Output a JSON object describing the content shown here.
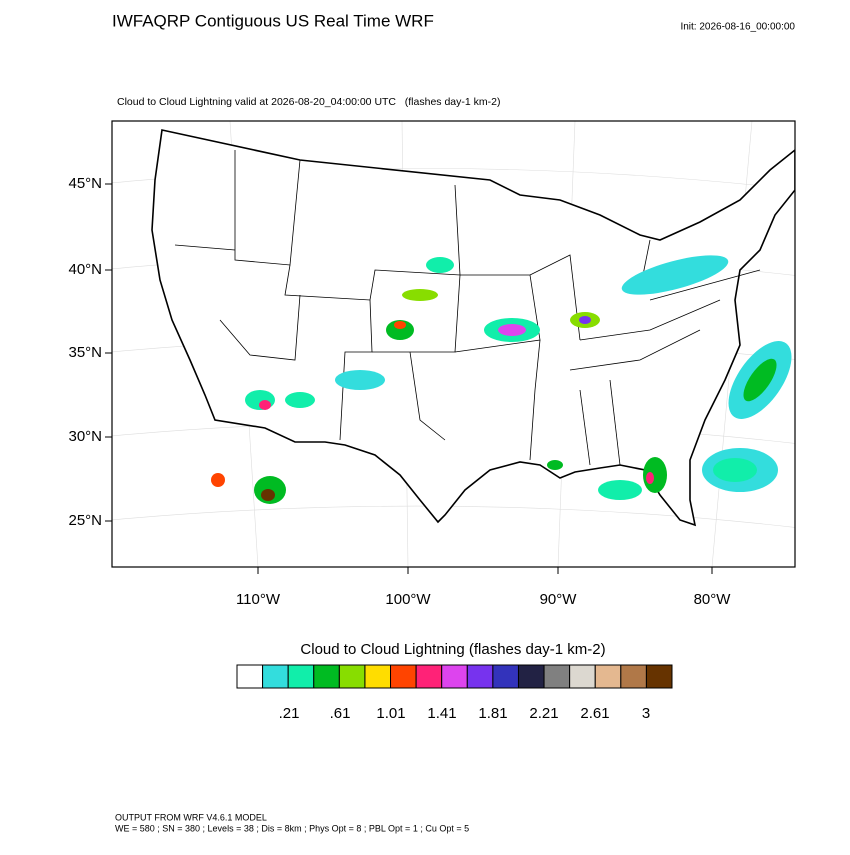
{
  "header": {
    "title": "IWFAQRP Contiguous US Real Time WRF",
    "init": "Init: 2026-08-16_00:00:00"
  },
  "map": {
    "subtitle": "Cloud to Cloud Lightning valid at 2026-08-20_04:00:00 UTC   (flashes day-1 km-2)",
    "lat_labels": [
      "45°N",
      "40°N",
      "35°N",
      "30°N",
      "25°N"
    ],
    "lon_labels": [
      "110°W",
      "100°W",
      "90°W",
      "80°W"
    ]
  },
  "colorbar": {
    "title": "Cloud to Cloud Lightning  (flashes day-1 km-2)",
    "colors": [
      "#ffffff",
      "#33dddd",
      "#11eeaa",
      "#00bb22",
      "#88dd00",
      "#ffdd00",
      "#ff4400",
      "#ff2277",
      "#dd44ee",
      "#7733ee",
      "#3333bb",
      "#222244",
      "#808080",
      "#dcd8d0",
      "#e4b890",
      "#b07848",
      "#663300"
    ],
    "labels": [
      ".21",
      ".61",
      "1.01",
      "1.41",
      "1.81",
      "2.21",
      "2.61",
      "3"
    ]
  },
  "footer": {
    "line1": "OUTPUT FROM WRF V4.6.1 MODEL",
    "line2": "WE = 580 ; SN = 380 ; Levels = 38 ; Dis = 8km ; Phys Opt = 8 ; PBL Opt = 1 ; Cu Opt = 5"
  }
}
